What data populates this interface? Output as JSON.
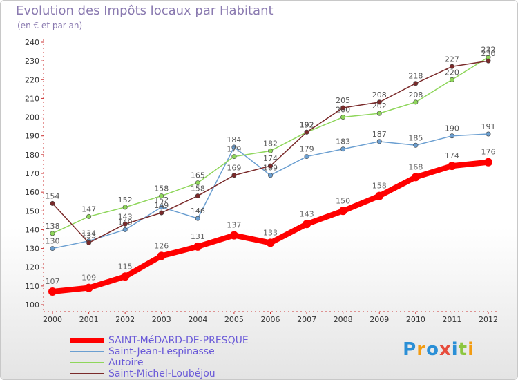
{
  "header": {
    "title": "Evolution des Impôts locaux par Habitant",
    "subtitle": "(en € et par an)"
  },
  "logo": {
    "text": "Proxiti",
    "letters": [
      {
        "ch": "P",
        "color": "#2a8fd6"
      },
      {
        "ch": "r",
        "color": "#f39c12"
      },
      {
        "ch": "o",
        "color": "#2a8fd6"
      },
      {
        "ch": "x",
        "color": "#e74c3c"
      },
      {
        "ch": "i",
        "color": "#2a8fd6"
      },
      {
        "ch": "t",
        "color": "#8cc63f"
      },
      {
        "ch": "i",
        "color": "#f39c12"
      }
    ]
  },
  "chart_data": {
    "type": "line",
    "title": "Evolution des Impôts locaux par Habitant",
    "subtitle": "(en € et par an)",
    "xlabel": "",
    "ylabel": "",
    "ylim": [
      100,
      240
    ],
    "y_ticks": [
      100,
      110,
      120,
      130,
      140,
      150,
      160,
      170,
      180,
      190,
      200,
      210,
      220,
      230,
      240
    ],
    "grid": false,
    "legend_position": "bottom-left",
    "categories": [
      "2000",
      "2001",
      "2002",
      "2003",
      "2004",
      "2005",
      "2006",
      "2007",
      "2008",
      "2009",
      "2010",
      "2011",
      "2012"
    ],
    "series": [
      {
        "name": "SAINT-MéDARD-DE-PRESQUE",
        "color": "#ff0000",
        "emphasis": true,
        "values": [
          107,
          109,
          115,
          126,
          131,
          137,
          133,
          143,
          150,
          158,
          168,
          174,
          176
        ]
      },
      {
        "name": "Saint-Jean-Lespinasse",
        "color": "#6b9fd1",
        "emphasis": false,
        "values": [
          130,
          134,
          140,
          152,
          146,
          184,
          169,
          179,
          183,
          187,
          185,
          190,
          191
        ]
      },
      {
        "name": "Autoire",
        "color": "#8ed65a",
        "emphasis": false,
        "values": [
          138,
          147,
          152,
          158,
          165,
          179,
          182,
          192,
          200,
          202,
          208,
          220,
          232
        ]
      },
      {
        "name": "Saint-Michel-Loubéjou",
        "color": "#7a2a2a",
        "emphasis": false,
        "values": [
          154,
          133,
          143,
          149,
          158,
          169,
          174,
          192,
          205,
          208,
          218,
          227,
          230
        ]
      }
    ]
  }
}
